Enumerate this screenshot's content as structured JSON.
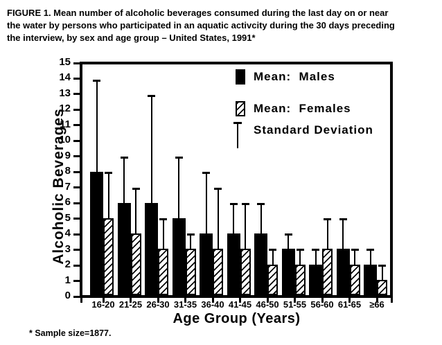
{
  "figure_title": "FIGURE 1.  Mean number of alcoholic beverages consumed during the last day on or near\nthe water by persons who participated in an aquatic activcity during the 30 days preceding\nthe interview, by sex and age group – United States, 1991*",
  "footnote": "* Sample size=1877.",
  "colors": {
    "foreground": "#000000",
    "background": "#ffffff"
  },
  "chart_data": {
    "type": "bar",
    "title": "FIGURE 1. Mean number of alcoholic beverages consumed during the last day on or near the water by persons who participated in an aquatic activcity during the 30 days preceding the interview, by sex and age group – United States, 1991*",
    "categories": [
      "16-20",
      "21-25",
      "26-30",
      "31-35",
      "36-40",
      "41-45",
      "46-50",
      "51-55",
      "56-60",
      "61-65",
      "≥66"
    ],
    "series": [
      {
        "name": "Mean:  Males",
        "pattern": "solid-black",
        "means": [
          8,
          6,
          6,
          5,
          4,
          4,
          4,
          3,
          2,
          3,
          2
        ],
        "mean_plus_sd": [
          14,
          9,
          13,
          9,
          8,
          6,
          6,
          4,
          3,
          5,
          3
        ]
      },
      {
        "name": "Mean:  Females",
        "pattern": "diagonal-hatch",
        "means": [
          5,
          4,
          3,
          3,
          3,
          3,
          2,
          2,
          3,
          2,
          1
        ],
        "mean_plus_sd": [
          8,
          7,
          5,
          4,
          7,
          6,
          3,
          3,
          5,
          3,
          2
        ]
      }
    ],
    "error_bars": "Standard Deviation (whisker cap drawn at mean + SD)",
    "xlabel": "Age Group (Years)",
    "ylabel": "Alcoholic Beverages",
    "ylim": [
      0,
      15
    ],
    "ytick_step": 1,
    "grid": false,
    "legend": {
      "position": "inside-top-right",
      "items": [
        {
          "swatch": "solid-black",
          "label": "Mean:  Males"
        },
        {
          "swatch": "diagonal-hatch",
          "label": "Mean:  Females"
        },
        {
          "swatch": "error-bar",
          "label": "Standard Deviation"
        }
      ]
    }
  }
}
